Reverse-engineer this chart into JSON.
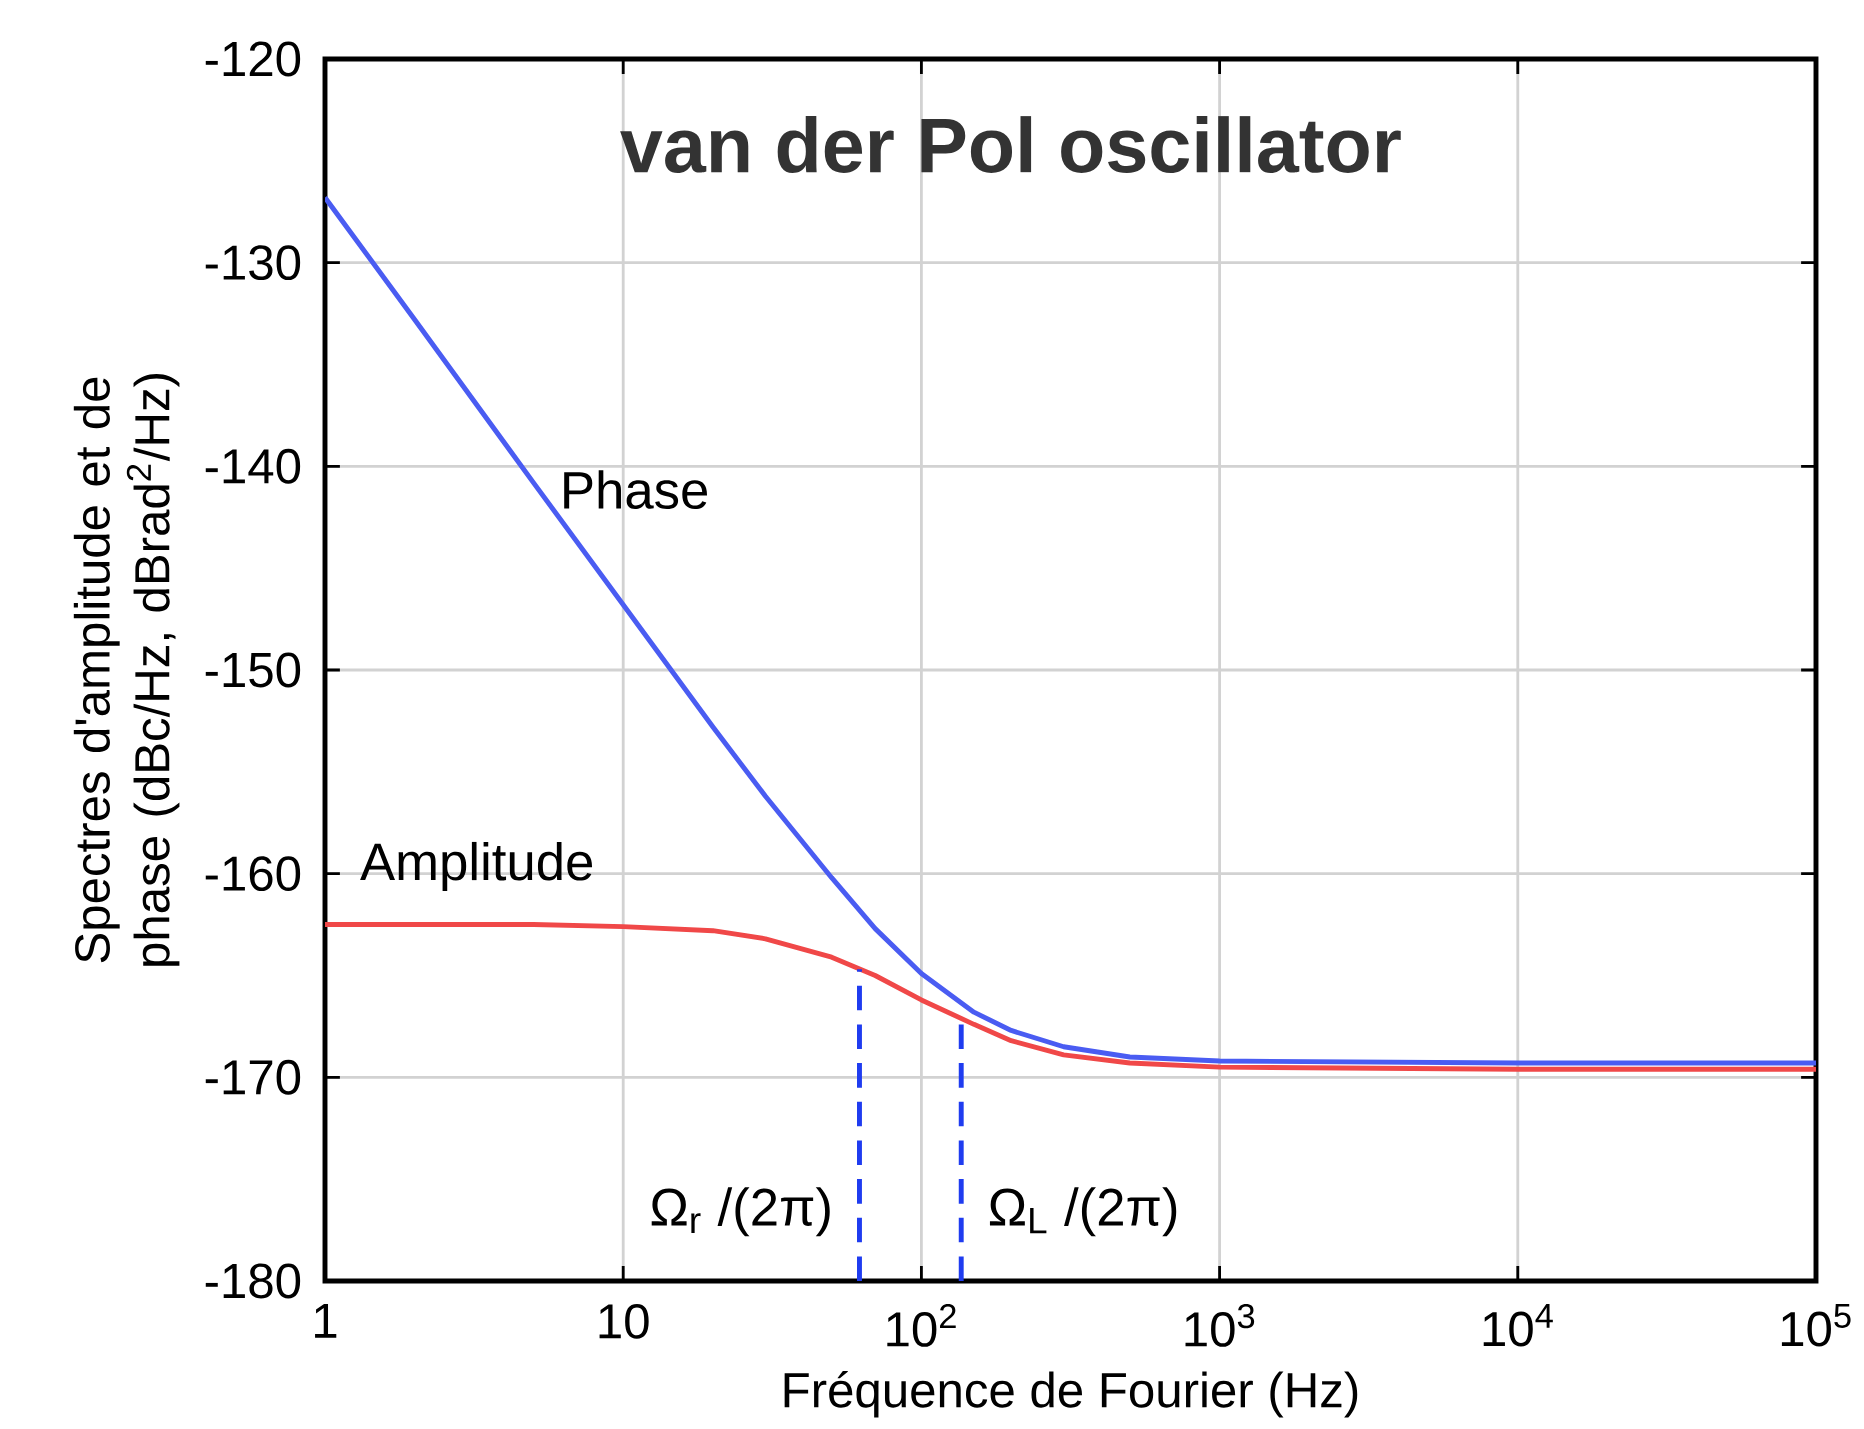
{
  "chart_data": {
    "type": "line",
    "title": "van der Pol oscillator",
    "xlabel": "Fréquence de Fourier (Hz)",
    "ylabel": "Spectres d'amplitude et de phase (dBc/Hz, dBrad$^{2}$/Hz)",
    "log": "x",
    "grid": true,
    "marker": "none",
    "line_style": "solid",
    "xlim": [
      1,
      100000
    ],
    "ylim": [
      -180,
      -120
    ],
    "xticks": [
      1,
      10,
      {
        "value": 100,
        "label": "10$^{2}$"
      },
      {
        "value": 1000,
        "label": "10$^{3}$"
      },
      {
        "value": 10000,
        "label": "10$^{4}$"
      },
      {
        "value": 100000,
        "label": "10$^{5}$"
      }
    ],
    "yticks": [
      -180,
      -170,
      -160,
      -150,
      -140,
      -130,
      -120
    ],
    "series": [
      {
        "name": "Amplitude",
        "color": "#f04848",
        "x": [
          1,
          5,
          10,
          20,
          30,
          50,
          70,
          100,
          150,
          200,
          300,
          500,
          1000,
          10000,
          100000
        ],
        "values": [
          -162.5,
          -162.5,
          -162.6,
          -162.8,
          -163.2,
          -164.1,
          -165.0,
          -166.2,
          -167.4,
          -168.2,
          -168.9,
          -169.3,
          -169.5,
          -169.6,
          -169.6
        ]
      },
      {
        "name": "Phase",
        "color": "#4a5cf2",
        "x": [
          1,
          2,
          5,
          10,
          20,
          30,
          50,
          70,
          100,
          150,
          200,
          300,
          500,
          1000,
          10000,
          100000
        ],
        "values": [
          -126.8,
          -132.8,
          -140.8,
          -146.8,
          -152.8,
          -156.2,
          -160.2,
          -162.7,
          -164.9,
          -166.8,
          -167.7,
          -168.5,
          -169.0,
          -169.2,
          -169.3,
          -169.3
        ]
      },
      {
        "type": "line",
        "line_style": "dashed",
        "color": "#1f3cf0",
        "x": [
          62,
          62
        ],
        "values": [
          -180,
          -164.7
        ]
      },
      {
        "type": "line",
        "line_style": "dashed",
        "color": "#1f3cf0",
        "x": [
          136,
          136
        ],
        "values": [
          -180,
          -166.9
        ]
      }
    ],
    "annotations": [
      {
        "text": "Ω$_{r}$ /(2π)",
        "x": 62,
        "y": -176.6
      },
      {
        "text": "Ω$_{L}$ /(2π)",
        "x": 136,
        "y": -176.6
      }
    ]
  }
}
